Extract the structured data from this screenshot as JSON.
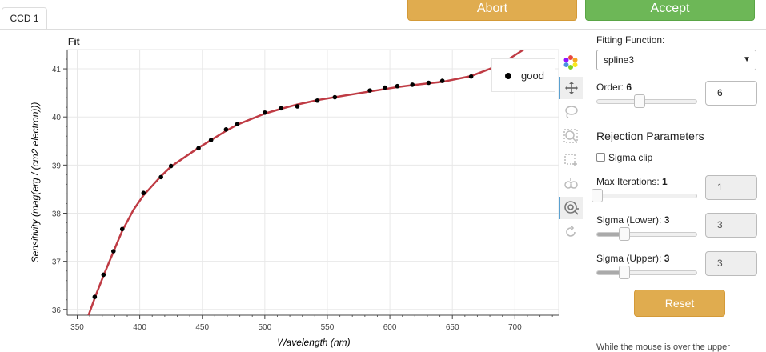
{
  "tab": {
    "label": "CCD 1"
  },
  "buttons": {
    "abort": "Abort",
    "accept": "Accept"
  },
  "plot": {
    "title": "Fit",
    "legend_label": "good"
  },
  "chart_data": {
    "type": "scatter",
    "title": "Fit",
    "xlabel": "Wavelength (nm)",
    "ylabel": "Sensitivity (mag(erg / (cm2 electron)))",
    "xlim": [
      342,
      735
    ],
    "ylim": [
      35.88,
      41.4
    ],
    "xticks": [
      350,
      400,
      450,
      500,
      550,
      600,
      650,
      700
    ],
    "yticks": [
      36,
      37,
      38,
      39,
      40,
      41
    ],
    "series": [
      {
        "name": "good",
        "color": "#000000",
        "x": [
          364,
          371,
          379,
          386,
          403,
          417,
          425,
          447,
          457,
          469,
          478,
          500,
          513,
          526,
          542,
          556,
          584,
          596,
          606,
          618,
          631,
          642,
          665
        ],
        "y": [
          36.26,
          36.72,
          37.21,
          37.67,
          38.42,
          38.75,
          38.98,
          39.35,
          39.52,
          39.74,
          39.85,
          40.09,
          40.18,
          40.22,
          40.34,
          40.41,
          40.55,
          40.61,
          40.64,
          40.67,
          40.71,
          40.75,
          40.84
        ]
      },
      {
        "name": "fit",
        "color": "#bf3b44",
        "type": "line",
        "x": [
          359,
          365,
          371,
          379,
          386,
          395,
          403,
          417,
          425,
          447,
          457,
          469,
          478,
          500,
          513,
          526,
          542,
          556,
          584,
          596,
          606,
          618,
          631,
          642,
          665,
          680,
          695,
          707
        ],
        "y": [
          35.88,
          36.3,
          36.7,
          37.2,
          37.63,
          38.07,
          38.37,
          38.77,
          38.97,
          39.36,
          39.52,
          39.71,
          39.84,
          40.07,
          40.17,
          40.26,
          40.35,
          40.41,
          40.53,
          40.58,
          40.62,
          40.66,
          40.7,
          40.73,
          40.85,
          41.0,
          41.2,
          41.4
        ]
      }
    ]
  },
  "controls": {
    "fitting_function_label": "Fitting Function:",
    "fitting_function_value": "spline3",
    "order_label": "Order:",
    "order_value": "6",
    "order_slider": 0.42,
    "rejection_title": "Rejection Parameters",
    "sigma_clip_label": "Sigma clip",
    "sigma_clip_checked": false,
    "max_iter_label": "Max Iterations:",
    "max_iter_value": "1",
    "max_iter_slider": 0.0,
    "sigma_lower_label": "Sigma (Lower):",
    "sigma_lower_value": "3",
    "sigma_lower_slider": 0.27,
    "sigma_upper_label": "Sigma (Upper):",
    "sigma_upper_value": "3",
    "sigma_upper_slider": 0.27,
    "reset_label": "Reset",
    "help_text": "While the mouse is over the upper"
  },
  "tool_icons": [
    "bokeh-logo-icon",
    "pan-icon",
    "lasso-select-icon",
    "zoom-icon",
    "box-select-icon",
    "wheel-zoom-icon",
    "reset-icon"
  ]
}
